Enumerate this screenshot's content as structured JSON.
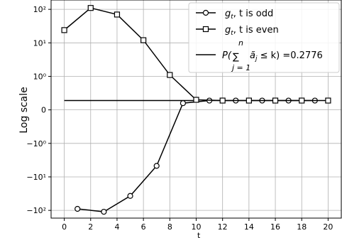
{
  "chart_data": {
    "type": "line",
    "ylabel": "Log scale",
    "yscale": "symlog",
    "xlim": [
      -1,
      21
    ],
    "ylim": [
      -170,
      190
    ],
    "grid": true,
    "legend_position": "top-right",
    "x_ticks": [
      0,
      2,
      4,
      6,
      8,
      10,
      12,
      14,
      16,
      18,
      20
    ],
    "x_tick_labels": [
      "0",
      "2",
      "4",
      "6",
      "8",
      "10",
      "12",
      "14",
      "16",
      "18",
      "20"
    ],
    "y_ticks": [
      100,
      10,
      1,
      0,
      -1,
      -10,
      -100
    ],
    "y_tick_labels": [
      "10²",
      "10¹",
      "10⁰",
      "0",
      "−10⁰",
      "−10¹",
      "−10²"
    ],
    "series": [
      {
        "name": "g_t, t is odd",
        "legend_main": "g",
        "legend_sub": "t",
        "legend_rest": ", t is odd",
        "marker": "circle",
        "x": [
          1,
          3,
          5,
          7,
          9,
          11,
          13,
          15,
          17,
          19
        ],
        "y": [
          -90,
          -110,
          -37,
          -4.7,
          0.2,
          0.2776,
          0.2776,
          0.2776,
          0.2776,
          0.2776
        ]
      },
      {
        "name": "g_t, t is even",
        "legend_main": "g",
        "legend_sub": "t",
        "legend_rest": ", t is even",
        "marker": "square",
        "x": [
          0,
          2,
          4,
          6,
          8,
          10,
          12,
          14,
          16,
          18,
          20
        ],
        "y": [
          24,
          110,
          70,
          12,
          1.1,
          0.3,
          0.2776,
          0.2776,
          0.2776,
          0.2776,
          0.2776
        ]
      }
    ],
    "hline": {
      "name": "P(sum_{j=1}^{n} ã_j ≤ k) = 0.2776",
      "y": 0.2776,
      "x_range": [
        0,
        10
      ]
    },
    "legend_hline_label": {
      "p": "P(",
      "sum": "∑",
      "sup": "n",
      "sub": "j = 1",
      "a": "ã",
      "a_sub": "j",
      "rest": " ≤ k) =0.2776"
    },
    "bottom_caption_fragment": "t"
  }
}
